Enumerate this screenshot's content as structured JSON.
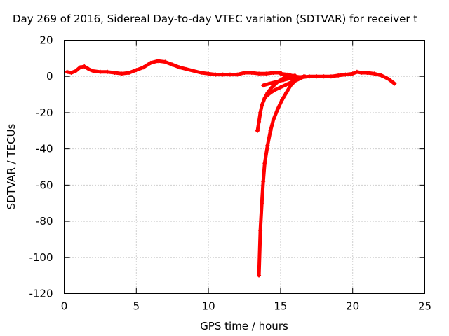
{
  "chart_data": {
    "type": "scatter",
    "title": "Day 269 of 2016, Sidereal Day-to-day VTEC variation (SDTVAR) for receiver t",
    "xlabel": "GPS time / hours",
    "ylabel": "SDTVAR / TECUs",
    "xlim": [
      0,
      25
    ],
    "ylim": [
      -120,
      20
    ],
    "xticks": [
      0,
      5,
      10,
      15,
      20,
      25
    ],
    "yticks": [
      20,
      0,
      -20,
      -40,
      -60,
      -80,
      -100,
      -120
    ],
    "grid": true,
    "marker": "+",
    "series": [
      {
        "name": "SDTVAR",
        "color": "#ff0000",
        "segments": [
          [
            [
              0.2,
              2.5
            ],
            [
              0.5,
              2
            ],
            [
              0.8,
              3
            ],
            [
              1.1,
              5
            ],
            [
              1.4,
              5.5
            ],
            [
              1.7,
              4
            ],
            [
              2.0,
              3
            ],
            [
              2.5,
              2.5
            ],
            [
              3.0,
              2.5
            ],
            [
              3.5,
              2
            ],
            [
              4.0,
              1.5
            ],
            [
              4.5,
              2
            ],
            [
              5.0,
              3.5
            ],
            [
              5.5,
              5
            ],
            [
              6.0,
              7.5
            ],
            [
              6.5,
              8.5
            ],
            [
              7.0,
              8
            ],
            [
              7.5,
              6.5
            ],
            [
              8.0,
              5
            ],
            [
              8.5,
              4
            ],
            [
              9.0,
              3
            ],
            [
              9.5,
              2
            ],
            [
              10.0,
              1.5
            ],
            [
              10.5,
              1
            ],
            [
              11.0,
              1
            ],
            [
              11.5,
              1
            ],
            [
              12.0,
              1
            ],
            [
              12.5,
              2
            ],
            [
              13.0,
              2
            ],
            [
              13.5,
              1.5
            ],
            [
              14.0,
              1.5
            ],
            [
              14.5,
              2
            ],
            [
              15.0,
              2
            ]
          ],
          [
            [
              15.0,
              1.5
            ],
            [
              15.5,
              1
            ],
            [
              16.0,
              0
            ],
            [
              16.5,
              -0.5
            ],
            [
              17.0,
              0
            ],
            [
              17.5,
              0
            ],
            [
              18.0,
              0
            ],
            [
              18.5,
              0
            ],
            [
              19.0,
              0.5
            ],
            [
              19.5,
              1
            ],
            [
              20.0,
              1.5
            ],
            [
              20.3,
              2.5
            ],
            [
              20.6,
              2
            ],
            [
              21.0,
              2
            ],
            [
              21.5,
              1.5
            ],
            [
              22.0,
              0.5
            ],
            [
              22.5,
              -1.5
            ],
            [
              22.9,
              -4
            ]
          ],
          [
            [
              13.4,
              -30
            ],
            [
              13.5,
              -25
            ],
            [
              13.6,
              -20
            ],
            [
              13.7,
              -16
            ],
            [
              13.9,
              -12
            ],
            [
              14.1,
              -9
            ],
            [
              14.4,
              -6
            ],
            [
              14.8,
              -3
            ],
            [
              15.2,
              -1
            ],
            [
              15.6,
              0
            ],
            [
              16.0,
              0.5
            ]
          ],
          [
            [
              13.5,
              -110
            ],
            [
              13.6,
              -85
            ],
            [
              13.7,
              -70
            ],
            [
              13.8,
              -58
            ],
            [
              13.9,
              -48
            ],
            [
              14.1,
              -38
            ],
            [
              14.3,
              -30
            ],
            [
              14.5,
              -24
            ],
            [
              14.8,
              -18
            ],
            [
              15.1,
              -13
            ],
            [
              15.4,
              -9
            ],
            [
              15.7,
              -5
            ],
            [
              16.0,
              -2.5
            ],
            [
              16.4,
              -1
            ]
          ],
          [
            [
              14.0,
              -11
            ],
            [
              14.3,
              -9
            ],
            [
              14.6,
              -7.5
            ],
            [
              15.0,
              -6
            ],
            [
              15.4,
              -4.5
            ],
            [
              15.8,
              -3
            ],
            [
              16.2,
              -1.5
            ],
            [
              16.6,
              0
            ]
          ],
          [
            [
              13.8,
              -5
            ],
            [
              14.2,
              -4
            ],
            [
              14.7,
              -3
            ],
            [
              15.2,
              -2
            ],
            [
              15.7,
              -1
            ],
            [
              16.2,
              -0.5
            ],
            [
              16.7,
              0
            ]
          ]
        ]
      }
    ]
  }
}
